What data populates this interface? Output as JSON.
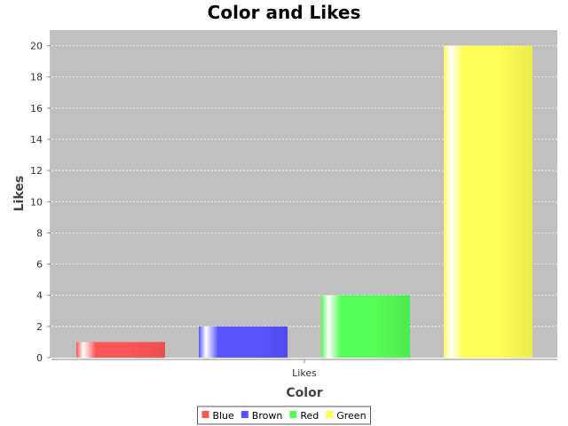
{
  "chart_data": {
    "type": "bar",
    "title": "Color and Likes",
    "xlabel": "Color",
    "ylabel": "Likes",
    "categories": [
      "Likes"
    ],
    "series": [
      {
        "name": "Blue",
        "values": [
          1
        ],
        "color": "#ff5555"
      },
      {
        "name": "Brown",
        "values": [
          2
        ],
        "color": "#5555ff"
      },
      {
        "name": "Red",
        "values": [
          4
        ],
        "color": "#55ff55"
      },
      {
        "name": "Green",
        "values": [
          20
        ],
        "color": "#ffff55"
      }
    ],
    "ylim": [
      0,
      21
    ],
    "yticks": [
      0,
      2,
      4,
      6,
      8,
      10,
      12,
      14,
      16,
      18,
      20
    ],
    "grid": true,
    "legend_position": "bottom",
    "plot_background": "#c0c0c0"
  }
}
